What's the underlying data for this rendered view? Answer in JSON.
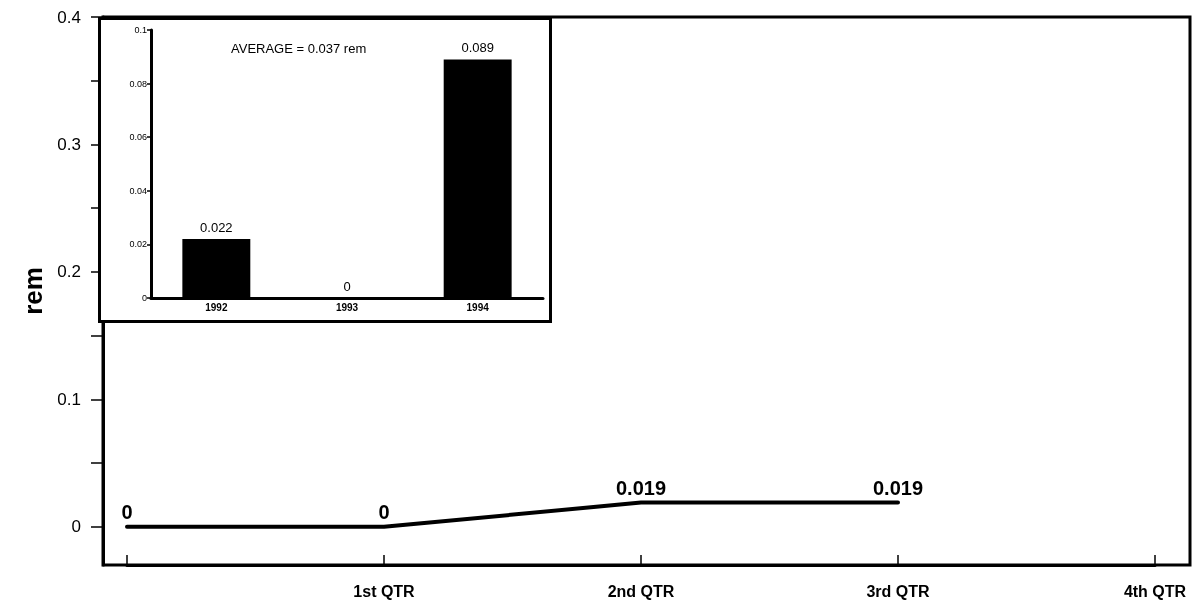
{
  "chart_data": [
    {
      "type": "line",
      "ylabel": "rem",
      "categories": [
        null,
        "1st QTR",
        "2nd QTR",
        "3rd QTR",
        "4th QTR"
      ],
      "series": [
        {
          "color": "#000000",
          "values": [
            0,
            0,
            0.019,
            0.019,
            null
          ]
        }
      ],
      "ylim": [
        -0.03,
        0.4
      ],
      "yticks": [
        0,
        {
          "value": 0.05,
          "label": null
        },
        0.1,
        {
          "value": 0.15,
          "label": null
        },
        0.2,
        {
          "value": 0.25,
          "label": null
        },
        0.3,
        {
          "value": 0.35,
          "label": null
        },
        0.4
      ],
      "data_labels": true,
      "marker": "none",
      "grid": false
    },
    {
      "type": "bar",
      "categories": [
        "1992",
        "1993",
        "1994"
      ],
      "series": [
        {
          "color": "#000000",
          "values": [
            0.022,
            0,
            0.089
          ]
        }
      ],
      "ylim": [
        0,
        0.1
      ],
      "yticks": [
        0,
        0.02,
        0.04,
        0.06,
        0.08,
        0.1
      ],
      "data_labels": true,
      "grid": false,
      "annotations": [
        "AVERAGE = 0.037 rem"
      ]
    }
  ]
}
